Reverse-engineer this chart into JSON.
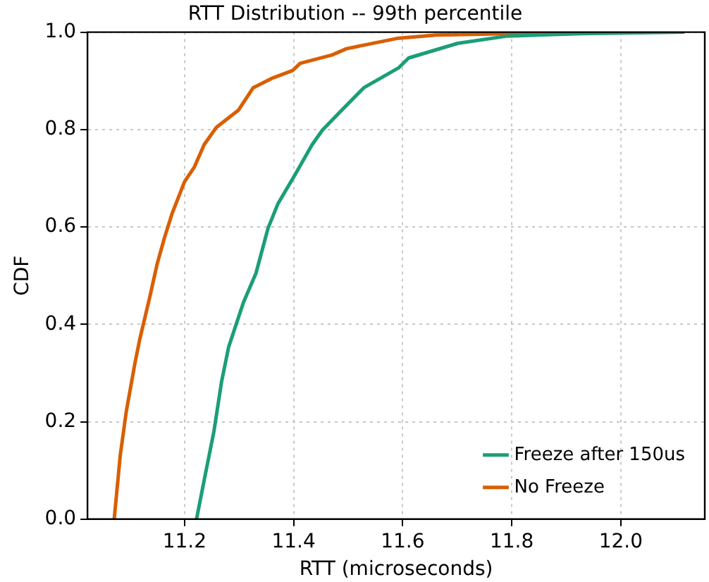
{
  "chart_data": {
    "type": "line",
    "title": "RTT Distribution -- 99th percentile",
    "xlabel": "RTT (microseconds)",
    "ylabel": "CDF",
    "xlim": [
      11.022,
      12.154
    ],
    "xticks": [
      11.2,
      11.4,
      11.6,
      11.8,
      {
        "value": 12,
        "label": "12.0"
      }
    ],
    "ylim": [
      0,
      1
    ],
    "yticks": [
      {
        "value": 0,
        "label": "0.0"
      },
      0.2,
      0.4,
      0.6,
      0.8,
      {
        "value": 1,
        "label": "1.0"
      }
    ],
    "grid": true,
    "legend": "bottom right",
    "marker": "none",
    "line_style": "solid",
    "series": [
      {
        "name": "Freeze after 150us",
        "color": "#1b9e77",
        "x": [
          11.222,
          11.236,
          11.254,
          11.268,
          11.281,
          11.308,
          11.331,
          11.353,
          11.371,
          11.403,
          11.434,
          11.453,
          11.484,
          11.529,
          11.593,
          11.611,
          11.701,
          11.792,
          11.927,
          12.117
        ],
        "values": [
          0,
          0.08,
          0.181,
          0.283,
          0.354,
          0.445,
          0.505,
          0.597,
          0.647,
          0.708,
          0.769,
          0.799,
          0.835,
          0.886,
          0.927,
          0.947,
          0.977,
          0.992,
          0.997,
          1.0
        ]
      },
      {
        "name": "No Freeze",
        "color": "#d95f02",
        "x": [
          11.071,
          11.082,
          11.093,
          11.109,
          11.118,
          11.136,
          11.15,
          11.163,
          11.177,
          11.2,
          11.218,
          11.236,
          11.258,
          11.299,
          11.326,
          11.362,
          11.398,
          11.412,
          11.47,
          11.497,
          11.589,
          11.661,
          11.796,
          11.97
        ],
        "values": [
          0,
          0.13,
          0.22,
          0.32,
          0.37,
          0.455,
          0.525,
          0.577,
          0.627,
          0.693,
          0.723,
          0.769,
          0.804,
          0.84,
          0.886,
          0.906,
          0.921,
          0.936,
          0.953,
          0.966,
          0.987,
          0.994,
          0.997,
          1.0
        ]
      }
    ]
  }
}
